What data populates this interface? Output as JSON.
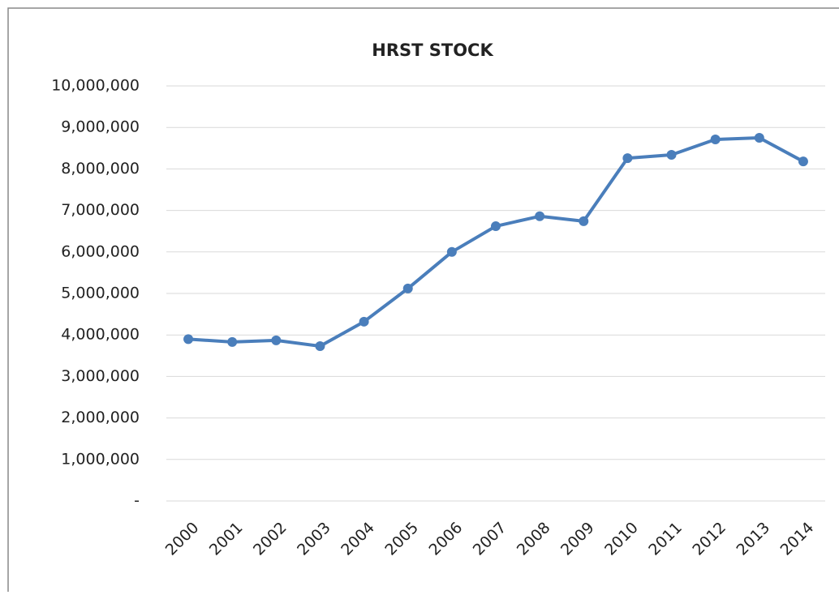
{
  "chart_data": {
    "type": "line",
    "title": "HRST STOCK",
    "categories": [
      "2000",
      "2001",
      "2002",
      "2003",
      "2004",
      "2005",
      "2006",
      "2007",
      "2008",
      "2009",
      "2010",
      "2011",
      "2012",
      "2013",
      "2014"
    ],
    "values": [
      3900000,
      3830000,
      3870000,
      3730000,
      4320000,
      5120000,
      6000000,
      6620000,
      6860000,
      6740000,
      8260000,
      8340000,
      8710000,
      8750000,
      8180000
    ],
    "color": "#4a7ebb",
    "ylim": [
      0,
      10000000
    ],
    "yticks": [
      {
        "value": 0,
        "label": "-"
      },
      {
        "value": 1000000,
        "label": "1,000,000"
      },
      {
        "value": 2000000,
        "label": "2,000,000"
      },
      {
        "value": 3000000,
        "label": "3,000,000"
      },
      {
        "value": 4000000,
        "label": "4,000,000"
      },
      {
        "value": 5000000,
        "label": "5,000,000"
      },
      {
        "value": 6000000,
        "label": "6,000,000"
      },
      {
        "value": 7000000,
        "label": "7,000,000"
      },
      {
        "value": 8000000,
        "label": "8,000,000"
      },
      {
        "value": 9000000,
        "label": "9,000,000"
      },
      {
        "value": 10000000,
        "label": "10,000,000"
      }
    ],
    "grid": true
  }
}
